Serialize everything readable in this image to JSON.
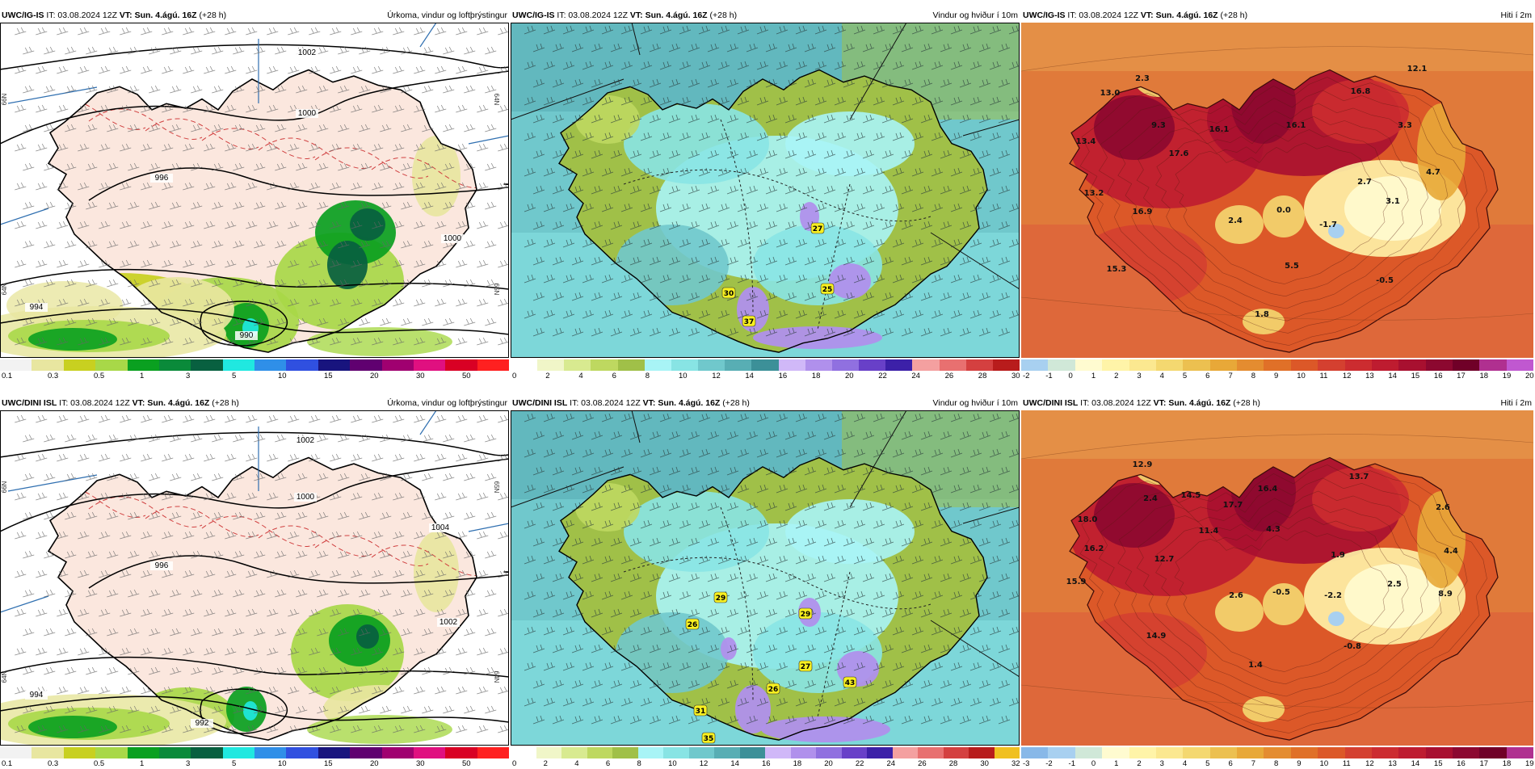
{
  "panels": [
    {
      "id": "p1",
      "model": "UWC/IG-IS",
      "it_label": "IT:",
      "it_value": "03.08.2024 12Z",
      "vt_label": "VT:",
      "vt_value": "Sun. 4.ágú. 16Z",
      "lead": "(+28 h)",
      "title": "Úrkoma, vindur og loftþrýstingur",
      "kind": "precip",
      "colorbar": {
        "colors": [
          "#f2f2f2",
          "#e8e6a0",
          "#c8d020",
          "#a8d848",
          "#0aa020",
          "#0a8a3a",
          "#086040",
          "#20e8e0",
          "#2f8fe8",
          "#3050e0",
          "#18147e",
          "#600070",
          "#a00070",
          "#e01080",
          "#d90024",
          "#ff2020"
        ],
        "ticks": [
          "0.1",
          "0.3",
          "0.5",
          "1",
          "3",
          "5",
          "10",
          "15",
          "20",
          "30",
          "50"
        ]
      },
      "labels": [
        {
          "text": "1002"
        },
        {
          "text": "1000"
        },
        {
          "text": "1000"
        },
        {
          "text": "996"
        },
        {
          "text": "994"
        },
        {
          "text": "990"
        }
      ],
      "axis_labels": [
        "66N",
        "64N",
        "65N",
        "64N"
      ]
    },
    {
      "id": "p2",
      "model": "UWC/IG-IS",
      "it_label": "IT:",
      "it_value": "03.08.2024 12Z",
      "vt_label": "VT:",
      "vt_value": "Sun. 4.ágú. 16Z",
      "lead": "(+28 h)",
      "title": "Vindur og hviður í 10m",
      "kind": "wind",
      "colorbar": {
        "colors": [
          "#ffffff",
          "#f0f6c8",
          "#d8ea90",
          "#bed860",
          "#a0c048",
          "#a8f4f6",
          "#88e4e4",
          "#70c8cc",
          "#58aeb4",
          "#3c9098",
          "#d0b8f8",
          "#b090ec",
          "#9070e0",
          "#6840c8",
          "#3c20a8",
          "#f4a0a0",
          "#e87070",
          "#d44040",
          "#b81c1c"
        ],
        "ticks": [
          "0",
          "2",
          "4",
          "6",
          "8",
          "10",
          "12",
          "14",
          "16",
          "18",
          "20",
          "22",
          "24",
          "26",
          "28",
          "30"
        ]
      },
      "labels": [
        {
          "text": "27"
        },
        {
          "text": "30"
        },
        {
          "text": "37"
        },
        {
          "text": "25"
        }
      ]
    },
    {
      "id": "p3",
      "model": "UWC/IG-IS",
      "it_label": "IT:",
      "it_value": "03.08.2024 12Z",
      "vt_label": "VT:",
      "vt_value": "Sun. 4.ágú. 16Z",
      "lead": "(+28 h)",
      "title": "Hiti í 2m",
      "kind": "temp",
      "colorbar": {
        "colors": [
          "#a8d0f0",
          "#d0e8d8",
          "#fffbd0",
          "#fff4a8",
          "#fbe890",
          "#f4d870",
          "#ecc050",
          "#e8a838",
          "#e48c30",
          "#e07028",
          "#dc5828",
          "#d44030",
          "#cc2c30",
          "#be1c30",
          "#a81030",
          "#8c0830",
          "#700028",
          "#b03090",
          "#c058d0"
        ],
        "ticks": [
          "-2",
          "-1",
          "0",
          "1",
          "2",
          "3",
          "4",
          "5",
          "6",
          "7",
          "8",
          "9",
          "10",
          "11",
          "12",
          "13",
          "14",
          "15",
          "16",
          "17",
          "18",
          "19",
          "20"
        ]
      },
      "labels": [
        {
          "text": "12.1"
        },
        {
          "text": "2.3"
        },
        {
          "text": "13.0"
        },
        {
          "text": "16.8"
        },
        {
          "text": "9.3"
        },
        {
          "text": "16.1"
        },
        {
          "text": "16.1"
        },
        {
          "text": "3.3"
        },
        {
          "text": "13.4"
        },
        {
          "text": "17.6"
        },
        {
          "text": "2.7"
        },
        {
          "text": "4.7"
        },
        {
          "text": "13.2"
        },
        {
          "text": "3.1"
        },
        {
          "text": "16.9"
        },
        {
          "text": "2.4"
        },
        {
          "text": "0.0"
        },
        {
          "text": "-1.7"
        },
        {
          "text": "5.5"
        },
        {
          "text": "15.3"
        },
        {
          "text": "-0.5"
        },
        {
          "text": "1.8"
        }
      ]
    },
    {
      "id": "p4",
      "model": "UWC/DINI ISL",
      "it_label": "IT:",
      "it_value": "03.08.2024 12Z",
      "vt_label": "VT:",
      "vt_value": "Sun. 4.ágú. 16Z",
      "lead": "(+28 h)",
      "title": "Úrkoma, vindur og loftþrýstingur",
      "kind": "precip",
      "colorbar": {
        "colors": [
          "#f2f2f2",
          "#e8e6a0",
          "#c8d020",
          "#a8d848",
          "#0aa020",
          "#0a8a3a",
          "#086040",
          "#20e8e0",
          "#2f8fe8",
          "#3050e0",
          "#18147e",
          "#600070",
          "#a00070",
          "#e01080",
          "#d90024",
          "#ff2020"
        ],
        "ticks": [
          "0.1",
          "0.3",
          "0.5",
          "1",
          "3",
          "5",
          "10",
          "15",
          "20",
          "30",
          "50"
        ]
      },
      "labels": [
        {
          "text": "1002"
        },
        {
          "text": "1000"
        },
        {
          "text": "1004"
        },
        {
          "text": "996"
        },
        {
          "text": "1002"
        },
        {
          "text": "994"
        },
        {
          "text": "992"
        }
      ],
      "axis_labels": [
        "66N",
        "65N",
        "64N",
        "64N"
      ]
    },
    {
      "id": "p5",
      "model": "UWC/DINI ISL",
      "it_label": "IT:",
      "it_value": "03.08.2024 12Z",
      "vt_label": "VT:",
      "vt_value": "Sun. 4.ágú. 16Z",
      "lead": "(+28 h)",
      "title": "Vindur og hviður í 10m",
      "kind": "wind",
      "colorbar": {
        "colors": [
          "#ffffff",
          "#f0f6c8",
          "#d8ea90",
          "#bed860",
          "#a0c048",
          "#a8f4f6",
          "#88e4e4",
          "#70c8cc",
          "#58aeb4",
          "#3c9098",
          "#d0b8f8",
          "#b090ec",
          "#9070e0",
          "#6840c8",
          "#3c20a8",
          "#f4a0a0",
          "#e87070",
          "#d44040",
          "#b81c1c",
          "#f0c020"
        ],
        "ticks": [
          "0",
          "2",
          "4",
          "6",
          "8",
          "10",
          "12",
          "14",
          "16",
          "18",
          "20",
          "22",
          "24",
          "26",
          "28",
          "30",
          "32"
        ]
      },
      "labels": [
        {
          "text": "29"
        },
        {
          "text": "29"
        },
        {
          "text": "26"
        },
        {
          "text": "27"
        },
        {
          "text": "26"
        },
        {
          "text": "31"
        },
        {
          "text": "43"
        },
        {
          "text": "35"
        }
      ]
    },
    {
      "id": "p6",
      "model": "UWC/DINI ISL",
      "it_label": "IT:",
      "it_value": "03.08.2024 12Z",
      "vt_label": "VT:",
      "vt_value": "Sun. 4.ágú. 16Z",
      "lead": "(+28 h)",
      "title": "Hiti í 2m",
      "kind": "temp",
      "colorbar": {
        "colors": [
          "#88b8e8",
          "#a8d0f0",
          "#d0e8d8",
          "#fffbd0",
          "#fff4a8",
          "#fbe890",
          "#f4d870",
          "#ecc050",
          "#e8a838",
          "#e48c30",
          "#e07028",
          "#dc5828",
          "#d44030",
          "#cc2c30",
          "#be1c30",
          "#a81030",
          "#8c0830",
          "#700028",
          "#b03090"
        ],
        "ticks": [
          "-3",
          "-2",
          "-1",
          "0",
          "1",
          "2",
          "3",
          "4",
          "5",
          "6",
          "7",
          "8",
          "9",
          "10",
          "11",
          "12",
          "13",
          "14",
          "15",
          "16",
          "17",
          "18",
          "19"
        ]
      },
      "labels": [
        {
          "text": "12.9"
        },
        {
          "text": "2.4"
        },
        {
          "text": "14.5"
        },
        {
          "text": "16.4"
        },
        {
          "text": "13.7"
        },
        {
          "text": "18.0"
        },
        {
          "text": "17.7"
        },
        {
          "text": "2.6"
        },
        {
          "text": "11.4"
        },
        {
          "text": "4.3"
        },
        {
          "text": "16.2"
        },
        {
          "text": "12.7"
        },
        {
          "text": "1.9"
        },
        {
          "text": "4.4"
        },
        {
          "text": "15.9"
        },
        {
          "text": "2.6"
        },
        {
          "text": "-0.5"
        },
        {
          "text": "2.5"
        },
        {
          "text": "-2.2"
        },
        {
          "text": "8.9"
        },
        {
          "text": "14.9"
        },
        {
          "text": "-0.8"
        },
        {
          "text": "1.4"
        }
      ]
    }
  ]
}
